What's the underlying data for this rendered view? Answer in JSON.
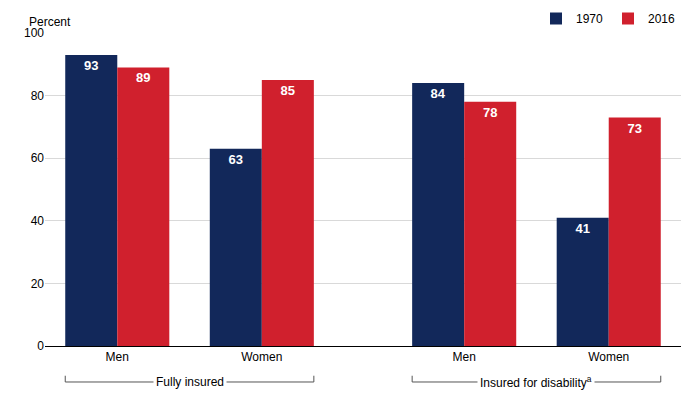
{
  "chart_data": {
    "type": "bar",
    "ylabel": "Percent",
    "groups": [
      {
        "label": "Fully insured",
        "categories": [
          "Men",
          "Women"
        ]
      },
      {
        "label": "Insured for disability",
        "footnote": "a",
        "categories": [
          "Men",
          "Women"
        ]
      }
    ],
    "series": [
      {
        "name": "1970",
        "color": "#12285a",
        "values": [
          93,
          63,
          84,
          41
        ]
      },
      {
        "name": "2016",
        "color": "#d0202d",
        "values": [
          89,
          85,
          78,
          73
        ]
      }
    ],
    "ylim": [
      0,
      100
    ],
    "yticks": [
      0,
      20,
      40,
      60,
      80,
      100
    ],
    "grid": true,
    "data_labels": true,
    "legend": "top right"
  }
}
